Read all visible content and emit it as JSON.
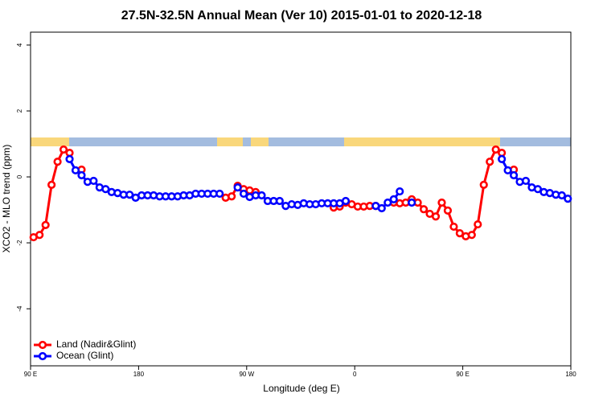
{
  "chart_data": {
    "type": "line",
    "title": "27.5N-32.5N Annual Mean (Ver 10)   2015-01-01 to 2020-12-18",
    "xlabel": "Longitude (deg E)",
    "ylabel": "XCO2 - MLO trend (ppm)",
    "x": [
      92.5,
      97.5,
      102.5,
      107.5,
      112.5,
      117.5,
      122.5,
      127.5,
      132.5,
      137.5,
      142.5,
      147.5,
      152.5,
      157.5,
      162.5,
      167.5,
      172.5,
      177.5,
      182.5,
      187.5,
      192.5,
      197.5,
      202.5,
      207.5,
      212.5,
      217.5,
      222.5,
      227.5,
      232.5,
      237.5,
      242.5,
      247.5,
      252.5,
      257.5,
      262.5,
      267.5,
      272.5,
      277.5,
      282.5,
      287.5,
      292.5,
      297.5,
      302.5,
      307.5,
      312.5,
      317.5,
      322.5,
      327.5,
      332.5,
      337.5,
      342.5,
      347.5,
      352.5,
      357.5,
      362.5,
      367.5,
      372.5,
      377.5,
      382.5,
      387.5,
      392.5,
      397.5,
      402.5,
      407.5,
      412.5,
      417.5,
      422.5,
      427.5,
      432.5,
      437.5,
      442.5,
      447.5,
      452.5,
      457.5,
      462.5,
      467.5,
      472.5,
      477.5,
      482.5,
      487.5,
      492.5,
      497.5,
      502.5,
      507.5,
      512.5,
      517.5,
      522.5,
      527.5,
      532.5,
      537.5
    ],
    "series": [
      {
        "name": "Land (Nadir&Glint)",
        "color": "#ff0000",
        "values": [
          -1.83,
          -1.76,
          -1.46,
          -0.24,
          0.46,
          0.83,
          0.73,
          null,
          0.22,
          null,
          null,
          null,
          null,
          null,
          null,
          null,
          null,
          null,
          null,
          null,
          null,
          null,
          null,
          null,
          null,
          null,
          null,
          null,
          null,
          null,
          null,
          null,
          -0.63,
          -0.59,
          -0.27,
          -0.37,
          -0.41,
          -0.46,
          null,
          null,
          null,
          null,
          null,
          null,
          null,
          null,
          null,
          null,
          null,
          null,
          -0.93,
          -0.9,
          -0.78,
          -0.83,
          -0.9,
          -0.9,
          -0.88,
          -0.88,
          null,
          null,
          -0.78,
          -0.8,
          -0.78,
          -0.68,
          -0.78,
          -0.98,
          -1.12,
          -1.2,
          -0.78,
          -1.02,
          -1.51,
          -1.71,
          -1.8,
          -1.76,
          -1.44,
          -0.24,
          0.46,
          0.83,
          0.73,
          null,
          0.22,
          null,
          null,
          null,
          null,
          null,
          null,
          null,
          null,
          null
        ]
      },
      {
        "name": "Ocean (Glint)",
        "color": "#0000ff",
        "values": [
          null,
          null,
          null,
          null,
          null,
          null,
          0.54,
          0.2,
          0.05,
          -0.15,
          -0.12,
          -0.32,
          -0.37,
          -0.46,
          -0.49,
          -0.54,
          -0.54,
          -0.63,
          -0.56,
          -0.56,
          -0.56,
          -0.59,
          -0.59,
          -0.59,
          -0.59,
          -0.56,
          -0.56,
          -0.51,
          -0.51,
          -0.51,
          -0.51,
          -0.51,
          null,
          null,
          -0.32,
          -0.51,
          -0.61,
          -0.56,
          -0.56,
          -0.73,
          -0.73,
          -0.73,
          -0.88,
          -0.83,
          -0.85,
          -0.8,
          -0.83,
          -0.83,
          -0.8,
          -0.8,
          -0.8,
          -0.8,
          -0.73,
          null,
          null,
          null,
          null,
          -0.88,
          -0.95,
          -0.78,
          -0.68,
          -0.44,
          null,
          -0.78,
          null,
          null,
          null,
          null,
          null,
          null,
          null,
          null,
          null,
          null,
          null,
          null,
          null,
          null,
          0.54,
          0.2,
          0.05,
          -0.15,
          -0.12,
          -0.32,
          -0.37,
          -0.46,
          -0.49,
          -0.54,
          -0.56,
          -0.66
        ]
      }
    ],
    "xlim": [
      90,
      540
    ],
    "xticks": [
      {
        "value": 90,
        "label": "90 E"
      },
      180,
      {
        "value": 270,
        "label": "90 W"
      },
      {
        "value": 360,
        "label": "0"
      },
      {
        "value": 450,
        "label": "90 E"
      },
      {
        "value": 540,
        "label": "180"
      }
    ],
    "ylim": [
      -5.73,
      4.39
    ],
    "yticks": [
      -4,
      -2,
      0,
      2,
      4
    ],
    "legend": "bottom-left"
  }
}
